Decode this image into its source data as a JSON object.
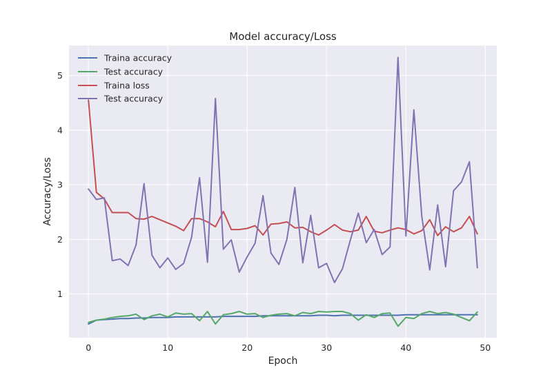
{
  "chart_data": {
    "type": "line",
    "title": "Model accuracy/Loss",
    "xlabel": "Epoch",
    "ylabel": "Accuracy/Loss",
    "xlim": [
      -2.45,
      51.45
    ],
    "ylim": [
      0.2,
      5.55
    ],
    "xticks": [
      0,
      10,
      20,
      30,
      40,
      50
    ],
    "yticks": [
      1,
      2,
      3,
      4,
      5
    ],
    "grid": true,
    "legend_position": "top-left",
    "background": "#eaeaf2",
    "x": [
      0,
      1,
      2,
      3,
      4,
      5,
      6,
      7,
      8,
      9,
      10,
      11,
      12,
      13,
      14,
      15,
      16,
      17,
      18,
      19,
      20,
      21,
      22,
      23,
      24,
      25,
      26,
      27,
      28,
      29,
      30,
      31,
      32,
      33,
      34,
      35,
      36,
      37,
      38,
      39,
      40,
      41,
      42,
      43,
      44,
      45,
      46,
      47,
      48,
      49
    ],
    "series": [
      {
        "name": "Traina accuracy",
        "color": "#4c72b0",
        "values": [
          0.45,
          0.52,
          0.53,
          0.54,
          0.55,
          0.55,
          0.56,
          0.56,
          0.57,
          0.57,
          0.57,
          0.58,
          0.58,
          0.58,
          0.58,
          0.58,
          0.58,
          0.59,
          0.59,
          0.59,
          0.59,
          0.59,
          0.6,
          0.6,
          0.6,
          0.6,
          0.6,
          0.6,
          0.6,
          0.61,
          0.61,
          0.6,
          0.61,
          0.61,
          0.61,
          0.61,
          0.61,
          0.61,
          0.61,
          0.61,
          0.62,
          0.62,
          0.62,
          0.62,
          0.62,
          0.62,
          0.62,
          0.62,
          0.62,
          0.62
        ]
      },
      {
        "name": "Test accuracy",
        "color": "#55a868",
        "values": [
          0.48,
          0.52,
          0.54,
          0.57,
          0.59,
          0.6,
          0.63,
          0.53,
          0.6,
          0.63,
          0.58,
          0.65,
          0.63,
          0.64,
          0.51,
          0.68,
          0.45,
          0.62,
          0.64,
          0.68,
          0.63,
          0.64,
          0.57,
          0.61,
          0.63,
          0.64,
          0.6,
          0.66,
          0.64,
          0.68,
          0.67,
          0.68,
          0.68,
          0.64,
          0.52,
          0.62,
          0.57,
          0.64,
          0.65,
          0.41,
          0.57,
          0.55,
          0.64,
          0.68,
          0.64,
          0.66,
          0.63,
          0.57,
          0.51,
          0.67
        ]
      },
      {
        "name": "Traina loss",
        "color": "#c44e52",
        "values": [
          4.55,
          2.86,
          2.74,
          2.49,
          2.49,
          2.49,
          2.38,
          2.37,
          2.42,
          2.36,
          2.3,
          2.24,
          2.16,
          2.38,
          2.38,
          2.32,
          2.23,
          2.51,
          2.18,
          2.18,
          2.2,
          2.25,
          2.08,
          2.28,
          2.29,
          2.32,
          2.21,
          2.22,
          2.14,
          2.08,
          2.17,
          2.27,
          2.17,
          2.14,
          2.17,
          2.42,
          2.15,
          2.12,
          2.17,
          2.21,
          2.18,
          2.1,
          2.16,
          2.36,
          2.07,
          2.23,
          2.14,
          2.21,
          2.42,
          2.1
        ]
      },
      {
        "name": "Test accuracy",
        "color": "#8172b2",
        "values": [
          2.92,
          2.73,
          2.76,
          1.61,
          1.64,
          1.52,
          1.9,
          3.02,
          1.71,
          1.48,
          1.66,
          1.45,
          1.56,
          2.04,
          3.13,
          1.58,
          4.58,
          1.82,
          1.99,
          1.4,
          1.68,
          1.93,
          2.8,
          1.75,
          1.54,
          2.0,
          2.95,
          1.57,
          2.44,
          1.48,
          1.56,
          1.21,
          1.46,
          1.99,
          2.48,
          1.94,
          2.18,
          1.72,
          1.86,
          5.33,
          2.06,
          4.37,
          2.42,
          1.44,
          2.63,
          1.5,
          2.89,
          3.05,
          3.42,
          1.48
        ]
      }
    ]
  }
}
